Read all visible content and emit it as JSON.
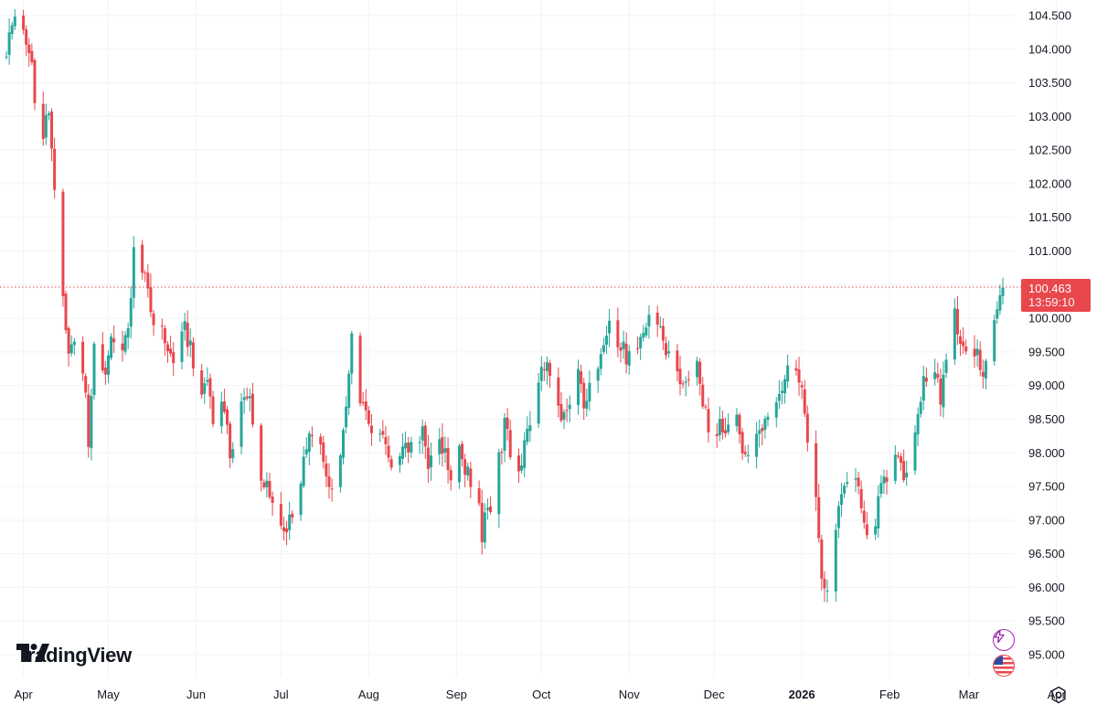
{
  "chart_data": {
    "type": "candlestick",
    "title": "",
    "xlabel": "",
    "ylabel": "",
    "ylim": [
      94.6,
      104.8
    ],
    "y_ticks": [
      "104.500",
      "104.000",
      "103.500",
      "103.000",
      "102.500",
      "102.000",
      "101.500",
      "101.000",
      "100.500",
      "100.000",
      "99.500",
      "99.000",
      "98.500",
      "98.000",
      "97.500",
      "97.000",
      "96.500",
      "96.000",
      "95.500",
      "95.000"
    ],
    "x_ticks": [
      {
        "label": "Apr",
        "day": 6,
        "bold": false
      },
      {
        "label": "May",
        "day": 36,
        "bold": false
      },
      {
        "label": "Jun",
        "day": 67,
        "bold": false
      },
      {
        "label": "Jul",
        "day": 97,
        "bold": false
      },
      {
        "label": "Aug",
        "day": 128,
        "bold": false
      },
      {
        "label": "Sep",
        "day": 159,
        "bold": false
      },
      {
        "label": "Oct",
        "day": 189,
        "bold": false
      },
      {
        "label": "Nov",
        "day": 220,
        "bold": false
      },
      {
        "label": "Dec",
        "day": 250,
        "bold": false
      },
      {
        "label": "2026",
        "day": 281,
        "bold": true
      },
      {
        "label": "Feb",
        "day": 312,
        "bold": false
      },
      {
        "label": "Mar",
        "day": 340,
        "bold": false
      },
      {
        "label": "Apr",
        "day": 371,
        "bold": false
      }
    ],
    "anchors": [
      [
        0,
        104.0
      ],
      [
        3,
        104.5
      ],
      [
        6,
        104.2
      ],
      [
        9,
        103.8
      ],
      [
        12,
        102.5
      ],
      [
        15,
        103.1
      ],
      [
        17,
        102.0
      ],
      [
        19,
        100.7
      ],
      [
        21,
        99.7
      ],
      [
        24,
        99.5
      ],
      [
        27,
        99.3
      ],
      [
        29,
        98.2
      ],
      [
        31,
        99.6
      ],
      [
        33,
        99.1
      ],
      [
        36,
        99.4
      ],
      [
        39,
        99.9
      ],
      [
        41,
        99.4
      ],
      [
        44,
        100.3
      ],
      [
        46,
        101.6
      ],
      [
        48,
        100.7
      ],
      [
        51,
        100.1
      ],
      [
        53,
        99.8
      ],
      [
        56,
        99.7
      ],
      [
        59,
        99.3
      ],
      [
        61,
        99.5
      ],
      [
        63,
        99.8
      ],
      [
        65,
        99.6
      ],
      [
        67,
        99.2
      ],
      [
        69,
        98.9
      ],
      [
        71,
        99.1
      ],
      [
        73,
        98.6
      ],
      [
        75,
        99.2
      ],
      [
        77,
        98.5
      ],
      [
        79,
        98.0
      ],
      [
        81,
        98.4
      ],
      [
        83,
        98.7
      ],
      [
        86,
        98.8
      ],
      [
        88,
        98.3
      ],
      [
        90,
        97.7
      ],
      [
        93,
        97.3
      ],
      [
        95,
        97.1
      ],
      [
        97,
        96.8
      ],
      [
        99,
        96.9
      ],
      [
        101,
        97.2
      ],
      [
        103,
        97.5
      ],
      [
        105,
        97.8
      ],
      [
        107,
        98.2
      ],
      [
        109,
        98.6
      ],
      [
        111,
        98.1
      ],
      [
        113,
        97.6
      ],
      [
        115,
        97.3
      ],
      [
        117,
        97.5
      ],
      [
        119,
        98.2
      ],
      [
        121,
        99.3
      ],
      [
        123,
        99.9
      ],
      [
        125,
        98.7
      ],
      [
        127,
        98.6
      ],
      [
        129,
        98.4
      ],
      [
        131,
        98.0
      ],
      [
        133,
        98.3
      ],
      [
        135,
        98.1
      ],
      [
        137,
        97.8
      ],
      [
        139,
        98.0
      ],
      [
        141,
        98.3
      ],
      [
        143,
        98.0
      ],
      [
        145,
        97.9
      ],
      [
        147,
        98.4
      ],
      [
        149,
        97.9
      ],
      [
        151,
        98.1
      ],
      [
        153,
        98.3
      ],
      [
        155,
        97.9
      ],
      [
        157,
        97.7
      ],
      [
        160,
        98.1
      ],
      [
        162,
        97.8
      ],
      [
        164,
        97.6
      ],
      [
        166,
        97.4
      ],
      [
        168,
        96.8
      ],
      [
        170,
        97.1
      ],
      [
        172,
        97.4
      ],
      [
        174,
        97.9
      ],
      [
        176,
        98.4
      ],
      [
        178,
        98.0
      ],
      [
        180,
        97.7
      ],
      [
        182,
        97.9
      ],
      [
        184,
        98.3
      ],
      [
        186,
        98.7
      ],
      [
        188,
        99.0
      ],
      [
        190,
        99.4
      ],
      [
        192,
        99.1
      ],
      [
        194,
        98.8
      ],
      [
        196,
        98.4
      ],
      [
        198,
        98.6
      ],
      [
        200,
        98.9
      ],
      [
        202,
        99.1
      ],
      [
        204,
        98.8
      ],
      [
        206,
        98.9
      ],
      [
        208,
        99.2
      ],
      [
        210,
        99.6
      ],
      [
        212,
        99.9
      ],
      [
        214,
        100.2
      ],
      [
        216,
        99.6
      ],
      [
        218,
        99.5
      ],
      [
        220,
        99.4
      ],
      [
        222,
        99.3
      ],
      [
        224,
        99.6
      ],
      [
        226,
        99.9
      ],
      [
        228,
        100.2
      ],
      [
        230,
        100.0
      ],
      [
        232,
        99.7
      ],
      [
        234,
        99.4
      ],
      [
        236,
        99.5
      ],
      [
        238,
        99.1
      ],
      [
        240,
        98.9
      ],
      [
        242,
        99.0
      ],
      [
        244,
        99.2
      ],
      [
        246,
        98.8
      ],
      [
        248,
        98.4
      ],
      [
        250,
        98.3
      ],
      [
        252,
        98.5
      ],
      [
        254,
        98.3
      ],
      [
        256,
        98.6
      ],
      [
        258,
        98.4
      ],
      [
        260,
        98.1
      ],
      [
        262,
        97.9
      ],
      [
        264,
        98.1
      ],
      [
        266,
        98.3
      ],
      [
        268,
        98.5
      ],
      [
        270,
        98.7
      ],
      [
        272,
        98.9
      ],
      [
        274,
        99.0
      ],
      [
        276,
        99.2
      ],
      [
        278,
        99.4
      ],
      [
        280,
        99.0
      ],
      [
        282,
        98.6
      ],
      [
        284,
        98.0
      ],
      [
        286,
        97.2
      ],
      [
        288,
        96.2
      ],
      [
        290,
        95.9
      ],
      [
        292,
        96.6
      ],
      [
        294,
        97.3
      ],
      [
        296,
        97.5
      ],
      [
        298,
        97.8
      ],
      [
        300,
        97.6
      ],
      [
        302,
        97.1
      ],
      [
        304,
        96.8
      ],
      [
        306,
        96.9
      ],
      [
        308,
        97.2
      ],
      [
        310,
        97.6
      ],
      [
        312,
        97.8
      ],
      [
        314,
        97.9
      ],
      [
        316,
        97.7
      ],
      [
        318,
        97.6
      ],
      [
        320,
        98.0
      ],
      [
        322,
        98.6
      ],
      [
        324,
        99.2
      ],
      [
        326,
        99.0
      ],
      [
        328,
        99.1
      ],
      [
        330,
        98.8
      ],
      [
        332,
        99.4
      ],
      [
        334,
        100.3
      ],
      [
        336,
        99.9
      ],
      [
        338,
        99.6
      ],
      [
        340,
        99.7
      ],
      [
        342,
        99.5
      ],
      [
        344,
        99.3
      ],
      [
        346,
        99.2
      ],
      [
        348,
        99.7
      ],
      [
        350,
        100.1
      ],
      [
        352,
        100.46
      ]
    ],
    "last_price": "100.463",
    "countdown": "13:59:10",
    "colors": {
      "up": "#26a69a",
      "down": "#e8474c",
      "grid": "#f0f3fa",
      "price_line": "#e8474c"
    }
  },
  "branding": {
    "logo_text": "TradingView"
  },
  "icons": {
    "flash": "flash-icon",
    "flag": "us-flag-icon",
    "settings": "gear-icon"
  }
}
